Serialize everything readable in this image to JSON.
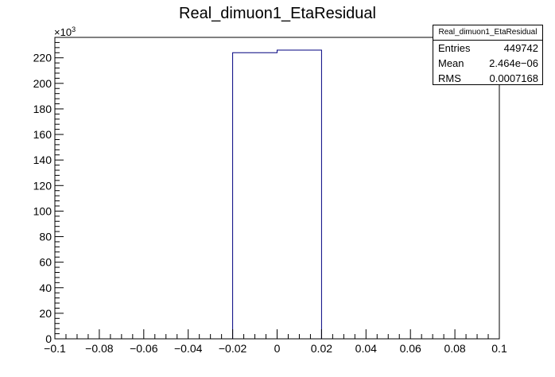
{
  "chart_data": {
    "type": "bar",
    "title": "Real_dimuon1_EtaResidual",
    "xlabel": "",
    "ylabel": "",
    "y_multiplier": "×10",
    "y_exponent": "3",
    "xlim": [
      -0.1,
      0.1
    ],
    "ylim": [
      0,
      236
    ],
    "grid": false,
    "x_ticks": [
      -0.1,
      -0.08,
      -0.06,
      -0.04,
      -0.02,
      0,
      0.02,
      0.04,
      0.06,
      0.08,
      0.1
    ],
    "x_tick_labels": [
      "−0.1",
      "−0.08",
      "−0.06",
      "−0.04",
      "−0.02",
      "0",
      "0.02",
      "0.04",
      "0.06",
      "0.08",
      "0.1"
    ],
    "y_ticks": [
      0,
      20,
      40,
      60,
      80,
      100,
      120,
      140,
      160,
      180,
      200,
      220
    ],
    "y_tick_labels": [
      "0",
      "20",
      "40",
      "60",
      "80",
      "100",
      "120",
      "140",
      "160",
      "180",
      "200",
      "220"
    ],
    "bins": [
      {
        "x_low": -0.02,
        "x_high": 0.0,
        "value": 224
      },
      {
        "x_low": 0.0,
        "x_high": 0.02,
        "value": 226
      }
    ],
    "line_color": "#00007f",
    "stats_box": {
      "title": "Real_dimuon1_EtaResidual",
      "placement": "top-right",
      "rows": [
        {
          "label": "Entries",
          "value": "449742"
        },
        {
          "label": "Mean",
          "value": "2.464e−06"
        },
        {
          "label": "RMS",
          "value": "0.0007168"
        }
      ]
    }
  }
}
